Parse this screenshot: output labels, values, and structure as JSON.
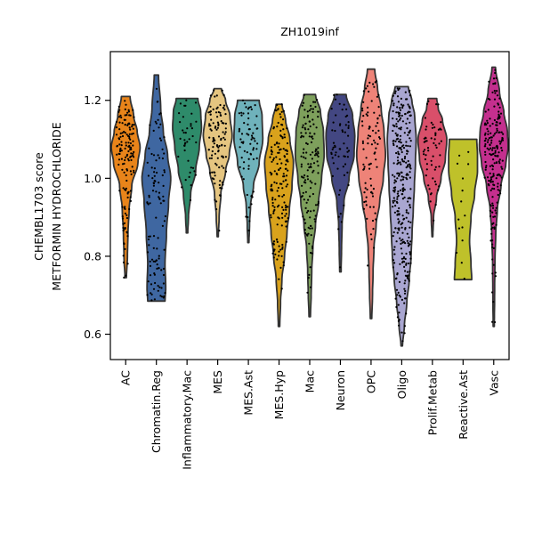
{
  "chart_data": {
    "type": "violin",
    "title": "ZH1019inf",
    "xlabel": "",
    "ylabel_lines": [
      "CHEMBL1703 score",
      "METFORMIN HYDROCHLORIDE"
    ],
    "ylim": [
      0.535,
      1.325
    ],
    "yticks": [
      0.6,
      0.8,
      1.0,
      1.2
    ],
    "ytick_labels": [
      "0.6",
      "0.8",
      "1.0",
      "1.2"
    ],
    "grid": false,
    "categories": [
      "AC",
      "Chromatin.Reg",
      "Inflammatory.Mac",
      "MES",
      "MES.Ast",
      "MES.Hyp",
      "Mac",
      "Neuron",
      "OPC",
      "Oligo",
      "Prolif.Metab",
      "Reactive.Ast",
      "Vasc"
    ],
    "series": [
      {
        "category": "AC",
        "color": "#E8841A",
        "min": 0.745,
        "max": 1.21,
        "n": 150,
        "density": [
          [
            0.745,
            0.05
          ],
          [
            0.8,
            0.12
          ],
          [
            0.86,
            0.16
          ],
          [
            0.92,
            0.24
          ],
          [
            0.98,
            0.42
          ],
          [
            1.04,
            0.85
          ],
          [
            1.08,
            1.0
          ],
          [
            1.12,
            0.8
          ],
          [
            1.16,
            0.55
          ],
          [
            1.21,
            0.3
          ]
        ]
      },
      {
        "category": "Chromatin.Reg",
        "color": "#3F67A1",
        "min": 0.685,
        "max": 1.265,
        "n": 110,
        "density": [
          [
            0.685,
            0.6
          ],
          [
            0.72,
            0.65
          ],
          [
            0.78,
            0.6
          ],
          [
            0.86,
            0.7
          ],
          [
            0.94,
            0.85
          ],
          [
            1.0,
            1.0
          ],
          [
            1.06,
            0.78
          ],
          [
            1.12,
            0.48
          ],
          [
            1.18,
            0.3
          ],
          [
            1.265,
            0.15
          ]
        ]
      },
      {
        "category": "Inflammatory.Mac",
        "color": "#2E8B6A",
        "min": 0.86,
        "max": 1.205,
        "n": 40,
        "density": [
          [
            0.86,
            0.05
          ],
          [
            0.9,
            0.1
          ],
          [
            0.96,
            0.25
          ],
          [
            1.02,
            0.6
          ],
          [
            1.08,
            0.85
          ],
          [
            1.13,
            1.0
          ],
          [
            1.17,
            0.95
          ],
          [
            1.205,
            0.75
          ]
        ]
      },
      {
        "category": "MES",
        "color": "#E5C580",
        "min": 0.85,
        "max": 1.23,
        "n": 110,
        "density": [
          [
            0.85,
            0.04
          ],
          [
            0.9,
            0.1
          ],
          [
            0.96,
            0.22
          ],
          [
            1.02,
            0.55
          ],
          [
            1.06,
            0.8
          ],
          [
            1.11,
            1.0
          ],
          [
            1.16,
            0.85
          ],
          [
            1.2,
            0.55
          ],
          [
            1.23,
            0.25
          ]
        ]
      },
      {
        "category": "MES.Ast",
        "color": "#6FB2BB",
        "min": 0.835,
        "max": 1.2,
        "n": 70,
        "density": [
          [
            0.835,
            0.04
          ],
          [
            0.88,
            0.08
          ],
          [
            0.93,
            0.15
          ],
          [
            0.98,
            0.35
          ],
          [
            1.04,
            0.75
          ],
          [
            1.1,
            1.0
          ],
          [
            1.16,
            0.95
          ],
          [
            1.2,
            0.75
          ]
        ]
      },
      {
        "category": "MES.Hyp",
        "color": "#D9A21C",
        "min": 0.62,
        "max": 1.19,
        "n": 160,
        "density": [
          [
            0.62,
            0.05
          ],
          [
            0.68,
            0.1
          ],
          [
            0.74,
            0.2
          ],
          [
            0.8,
            0.38
          ],
          [
            0.86,
            0.55
          ],
          [
            0.92,
            0.72
          ],
          [
            0.98,
            0.9
          ],
          [
            1.04,
            1.0
          ],
          [
            1.1,
            0.75
          ],
          [
            1.15,
            0.45
          ],
          [
            1.19,
            0.2
          ]
        ]
      },
      {
        "category": "Mac",
        "color": "#7EA05C",
        "min": 0.645,
        "max": 1.215,
        "n": 140,
        "density": [
          [
            0.645,
            0.05
          ],
          [
            0.7,
            0.1
          ],
          [
            0.76,
            0.14
          ],
          [
            0.82,
            0.22
          ],
          [
            0.88,
            0.4
          ],
          [
            0.94,
            0.62
          ],
          [
            1.0,
            0.82
          ],
          [
            1.06,
            1.0
          ],
          [
            1.12,
            0.95
          ],
          [
            1.17,
            0.75
          ],
          [
            1.215,
            0.4
          ]
        ]
      },
      {
        "category": "Neuron",
        "color": "#434782",
        "min": 0.76,
        "max": 1.215,
        "n": 60,
        "density": [
          [
            0.76,
            0.05
          ],
          [
            0.82,
            0.08
          ],
          [
            0.88,
            0.12
          ],
          [
            0.94,
            0.25
          ],
          [
            1.0,
            0.6
          ],
          [
            1.06,
            0.95
          ],
          [
            1.11,
            1.0
          ],
          [
            1.16,
            0.85
          ],
          [
            1.215,
            0.4
          ]
        ]
      },
      {
        "category": "OPC",
        "color": "#EE8378",
        "min": 0.64,
        "max": 1.28,
        "n": 90,
        "density": [
          [
            0.64,
            0.05
          ],
          [
            0.7,
            0.1
          ],
          [
            0.76,
            0.14
          ],
          [
            0.82,
            0.2
          ],
          [
            0.88,
            0.35
          ],
          [
            0.94,
            0.6
          ],
          [
            1.0,
            0.85
          ],
          [
            1.06,
            1.0
          ],
          [
            1.12,
            0.9
          ],
          [
            1.18,
            0.7
          ],
          [
            1.23,
            0.45
          ],
          [
            1.28,
            0.25
          ]
        ]
      },
      {
        "category": "Oligo",
        "color": "#A9A6D1",
        "min": 0.57,
        "max": 1.235,
        "n": 320,
        "density": [
          [
            0.57,
            0.05
          ],
          [
            0.62,
            0.18
          ],
          [
            0.68,
            0.35
          ],
          [
            0.74,
            0.52
          ],
          [
            0.8,
            0.65
          ],
          [
            0.86,
            0.72
          ],
          [
            0.92,
            0.8
          ],
          [
            0.98,
            0.88
          ],
          [
            1.04,
            0.95
          ],
          [
            1.1,
            1.0
          ],
          [
            1.16,
            0.9
          ],
          [
            1.2,
            0.7
          ],
          [
            1.235,
            0.45
          ]
        ]
      },
      {
        "category": "Prolif.Metab",
        "color": "#D94F6A",
        "min": 0.85,
        "max": 1.205,
        "n": 60,
        "density": [
          [
            0.85,
            0.03
          ],
          [
            0.9,
            0.08
          ],
          [
            0.95,
            0.28
          ],
          [
            1.0,
            0.6
          ],
          [
            1.05,
            0.9
          ],
          [
            1.1,
            1.0
          ],
          [
            1.15,
            0.7
          ],
          [
            1.18,
            0.4
          ],
          [
            1.205,
            0.3
          ]
        ]
      },
      {
        "category": "Reactive.Ast",
        "color": "#BFC12A",
        "min": 0.74,
        "max": 1.1,
        "n": 15,
        "density": [
          [
            0.74,
            0.6
          ],
          [
            0.78,
            0.55
          ],
          [
            0.84,
            0.45
          ],
          [
            0.9,
            0.55
          ],
          [
            0.96,
            0.8
          ],
          [
            1.02,
            1.0
          ],
          [
            1.06,
            1.0
          ],
          [
            1.1,
            0.95
          ]
        ]
      },
      {
        "category": "Vasc",
        "color": "#C42F8E",
        "min": 0.62,
        "max": 1.285,
        "n": 200,
        "density": [
          [
            0.62,
            0.04
          ],
          [
            0.7,
            0.06
          ],
          [
            0.78,
            0.08
          ],
          [
            0.86,
            0.14
          ],
          [
            0.92,
            0.25
          ],
          [
            0.98,
            0.5
          ],
          [
            1.04,
            0.85
          ],
          [
            1.08,
            1.0
          ],
          [
            1.12,
            0.95
          ],
          [
            1.17,
            0.7
          ],
          [
            1.22,
            0.4
          ],
          [
            1.285,
            0.12
          ]
        ]
      }
    ]
  }
}
